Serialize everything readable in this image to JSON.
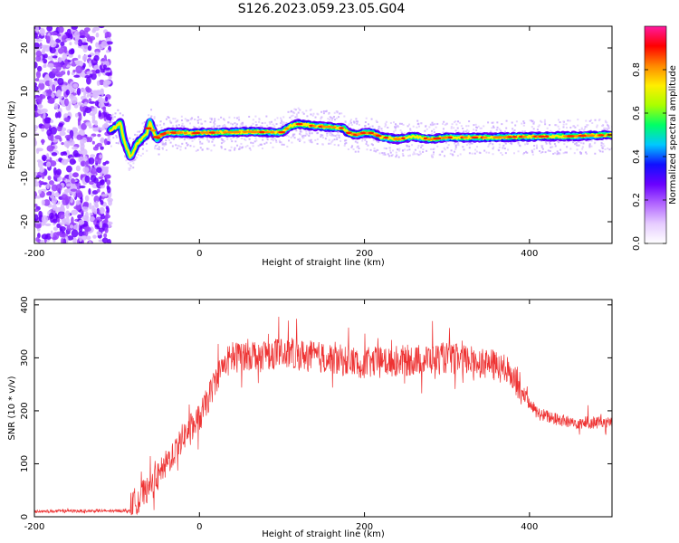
{
  "figure_title": "S126.2023.059.23.05.G04",
  "chart_data": [
    {
      "type": "heatmap",
      "title": "S126.2023.059.23.05.G04",
      "xlabel": "Height of straight line (km)",
      "ylabel": "Frequency (Hz)",
      "xlim": [
        -200,
        500
      ],
      "ylim": [
        -25,
        25
      ],
      "xticks": [
        -200,
        0,
        200,
        400
      ],
      "yticks": [
        -20,
        -10,
        0,
        10,
        20
      ],
      "colorbar": {
        "label": "Normalized spectral amplitude",
        "range": [
          0,
          1
        ],
        "ticks": [
          0.0,
          0.2,
          0.4,
          0.6,
          0.8
        ],
        "colormap": [
          "#ffffff",
          "#e6ccff",
          "#b266ff",
          "#6a00ff",
          "#1010ff",
          "#00c8ff",
          "#00ff66",
          "#aaff00",
          "#ffee00",
          "#ff8800",
          "#ff0000",
          "#ff1aa0"
        ]
      },
      "noise_region_x": [
        -200,
        -108
      ],
      "ridge": {
        "x": [
          -108,
          -100,
          -96,
          -92,
          -88,
          -84,
          -80,
          -76,
          -70,
          -64,
          -60,
          -56,
          -52,
          -46,
          -40,
          -30,
          -20,
          -10,
          0,
          20,
          40,
          60,
          80,
          100,
          110,
          120,
          140,
          160,
          175,
          180,
          190,
          200,
          210,
          220,
          240,
          260,
          280,
          300,
          350,
          400,
          450,
          500
        ],
        "y": [
          1,
          2,
          3,
          -1,
          -3,
          -5,
          -4,
          -2,
          -1,
          0,
          3,
          1,
          -1,
          0,
          0.5,
          0.5,
          0.5,
          0.3,
          0.5,
          0.5,
          0.6,
          0.7,
          0.6,
          0.6,
          2,
          2.5,
          2,
          1.8,
          1.5,
          0.5,
          0,
          0.5,
          0.4,
          -0.5,
          -1,
          -0.4,
          -1,
          -0.6,
          -0.6,
          -0.4,
          -0.3,
          0
        ]
      }
    },
    {
      "type": "line",
      "xlabel": "Height of straight line (km)",
      "ylabel": "SNR (10 * v/v)",
      "xlim": [
        -200,
        500
      ],
      "ylim": [
        0,
        410
      ],
      "xticks": [
        -200,
        0,
        200,
        400
      ],
      "yticks": [
        0,
        100,
        200,
        300,
        400
      ],
      "color": "#ee3333",
      "series": [
        {
          "x": [
            -200,
            -150,
            -100,
            -85,
            -80,
            -70,
            -60,
            -50,
            -40,
            -30,
            -20,
            -10,
            0,
            10,
            20,
            30,
            50,
            100,
            150,
            200,
            250,
            300,
            350,
            380,
            390,
            400,
            410,
            430,
            450,
            500
          ],
          "values": [
            10,
            11,
            11,
            12,
            25,
            40,
            55,
            75,
            100,
            125,
            150,
            170,
            185,
            220,
            260,
            290,
            305,
            310,
            300,
            290,
            295,
            300,
            290,
            270,
            240,
            215,
            195,
            185,
            178,
            178
          ]
        }
      ]
    }
  ]
}
